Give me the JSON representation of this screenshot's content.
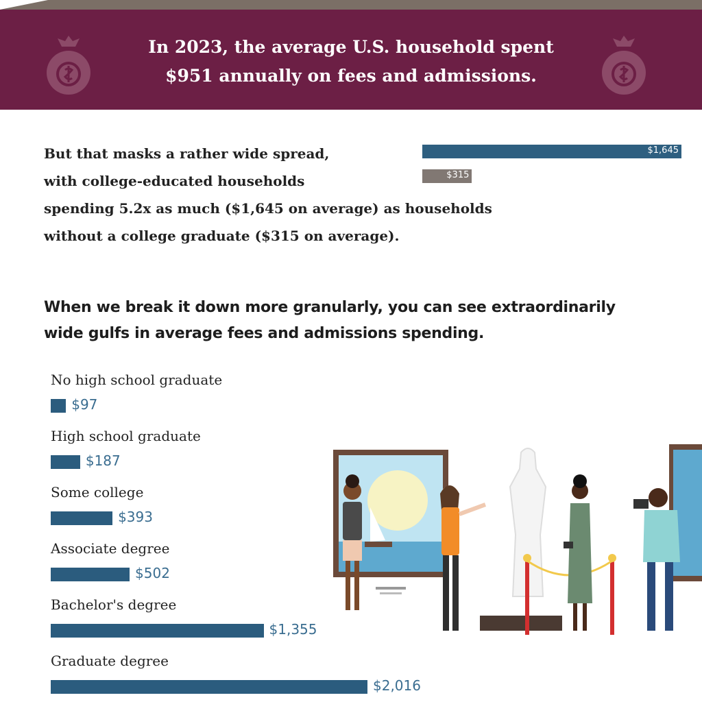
{
  "banner": {
    "line1": "In 2023, the average U.S. household spent",
    "line2": "$951 annually on fees and admissions.",
    "icon": "money-bag-icon"
  },
  "intro": {
    "line1": "But that masks a rather wide spread,",
    "line2": "with college-educated households",
    "line3": "spending 5.2x as much ($1,645 on average) as households",
    "line4": "without a college graduate ($315 on average).",
    "bars": [
      {
        "label": "$1,645",
        "value": 1645
      },
      {
        "label": "$315",
        "value": 315
      }
    ]
  },
  "subhead": {
    "line1": "When we break it down more granularly, you can see extraordinarily",
    "line2": "wide gulfs in average fees and admissions spending."
  },
  "chart_data": {
    "type": "bar",
    "orientation": "horizontal",
    "categories": [
      "No high school graduate",
      "High school graduate",
      "Some college",
      "Associate degree",
      "Bachelor's degree",
      "Graduate degree"
    ],
    "values": [
      97,
      187,
      393,
      502,
      1355,
      2016
    ],
    "value_labels": [
      "$97",
      "$187",
      "$393",
      "$502",
      "$1,355",
      "$2,016"
    ],
    "color": "#2b5c7e"
  },
  "colors": {
    "banner": "#6c1f45",
    "bar": "#2b5c7e",
    "muted_bar": "#817873"
  }
}
